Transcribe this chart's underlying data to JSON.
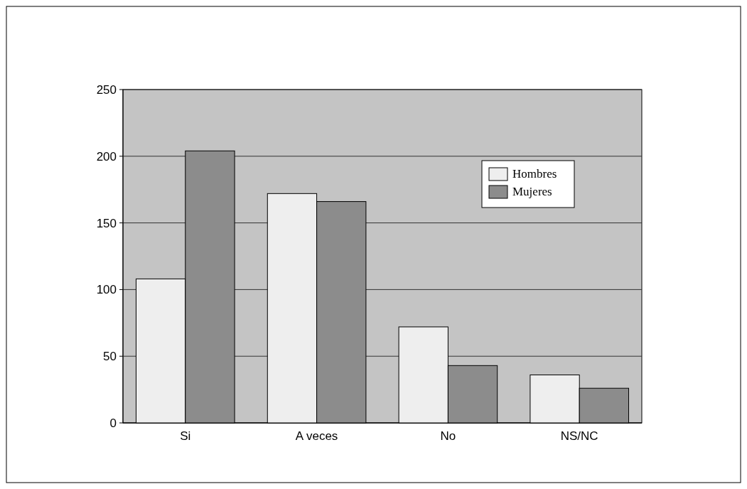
{
  "chart_data": {
    "type": "bar",
    "categories": [
      "Si",
      "A veces",
      "No",
      "NS/NC"
    ],
    "series": [
      {
        "name": "Hombres",
        "color": "#eeeeee",
        "values": [
          108,
          172,
          72,
          36
        ]
      },
      {
        "name": "Mujeres",
        "color": "#8c8c8c",
        "values": [
          204,
          166,
          43,
          26
        ]
      }
    ],
    "ylim": [
      0,
      250
    ],
    "yticks": [
      0,
      50,
      100,
      150,
      200,
      250
    ],
    "grid": "y",
    "legend": "top right"
  }
}
